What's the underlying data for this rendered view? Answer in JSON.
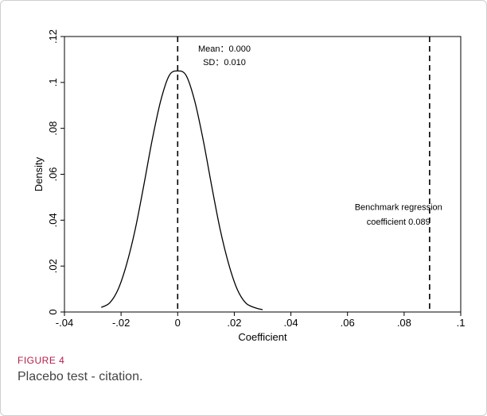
{
  "figure": {
    "label": "FIGURE 4",
    "caption": "Placebo test - citation."
  },
  "chart_data": {
    "type": "line",
    "xlabel": "Coefficient",
    "ylabel": "Density",
    "xlim": [
      -0.04,
      0.1
    ],
    "ylim": [
      0,
      0.12
    ],
    "x_ticks": [
      -0.04,
      -0.02,
      0,
      0.02,
      0.04,
      0.06,
      0.08,
      0.1
    ],
    "x_tick_labels": [
      "-.04",
      "-.02",
      "0",
      ".02",
      ".04",
      ".06",
      ".08",
      ".1"
    ],
    "y_ticks": [
      0,
      0.02,
      0.04,
      0.06,
      0.08,
      0.1,
      0.12
    ],
    "y_tick_labels": [
      "0",
      ".02",
      ".04",
      ".06",
      ".08",
      ".1",
      ".12"
    ],
    "grid": false,
    "series": [
      {
        "x": [
          -0.027,
          -0.024,
          -0.021,
          -0.018,
          -0.015,
          -0.012,
          -0.009,
          -0.006,
          -0.003,
          0.0,
          0.003,
          0.006,
          0.009,
          0.012,
          0.015,
          0.018,
          0.021,
          0.024,
          0.027,
          0.03
        ],
        "y": [
          0.002,
          0.004,
          0.01,
          0.021,
          0.036,
          0.055,
          0.075,
          0.092,
          0.103,
          0.105,
          0.103,
          0.092,
          0.075,
          0.055,
          0.036,
          0.021,
          0.01,
          0.004,
          0.002,
          0.001
        ]
      }
    ],
    "reference_lines": [
      {
        "x": 0.0,
        "style": "dashed"
      },
      {
        "x": 0.089,
        "style": "dashed"
      }
    ],
    "annotations": [
      {
        "text": "Mean：0.000",
        "x": 0.0165,
        "y": 0.1135
      },
      {
        "text": "SD：0.010",
        "x": 0.0165,
        "y": 0.1075
      },
      {
        "text": "Benchmark regression",
        "x": 0.078,
        "y": 0.0445
      },
      {
        "text": "coefficient 0.089",
        "x": 0.078,
        "y": 0.038
      }
    ]
  }
}
